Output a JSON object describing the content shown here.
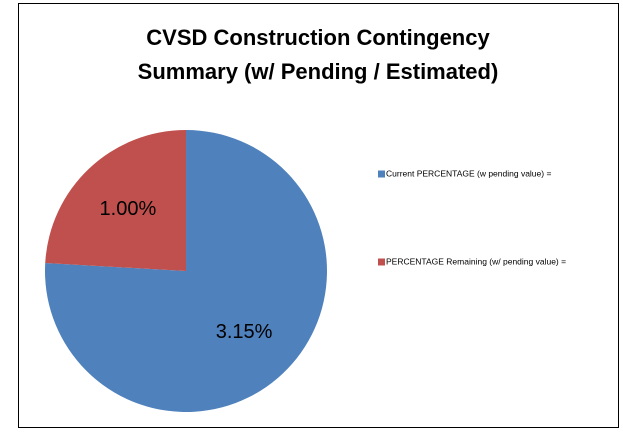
{
  "chart_data": {
    "type": "pie",
    "title": [
      "CVSD Construction Contingency",
      "Summary (w/ Pending / Estimated)"
    ],
    "categories": [
      "Current PERCENTAGE (w pending value) =",
      "PERCENTAGE Remaining (w/ pending value) ="
    ],
    "values": [
      3.15,
      1.0
    ],
    "value_labels": [
      "3.15%",
      "1.00%"
    ],
    "colors": [
      "#4f81bd",
      "#c0504d"
    ],
    "legend": "right"
  }
}
